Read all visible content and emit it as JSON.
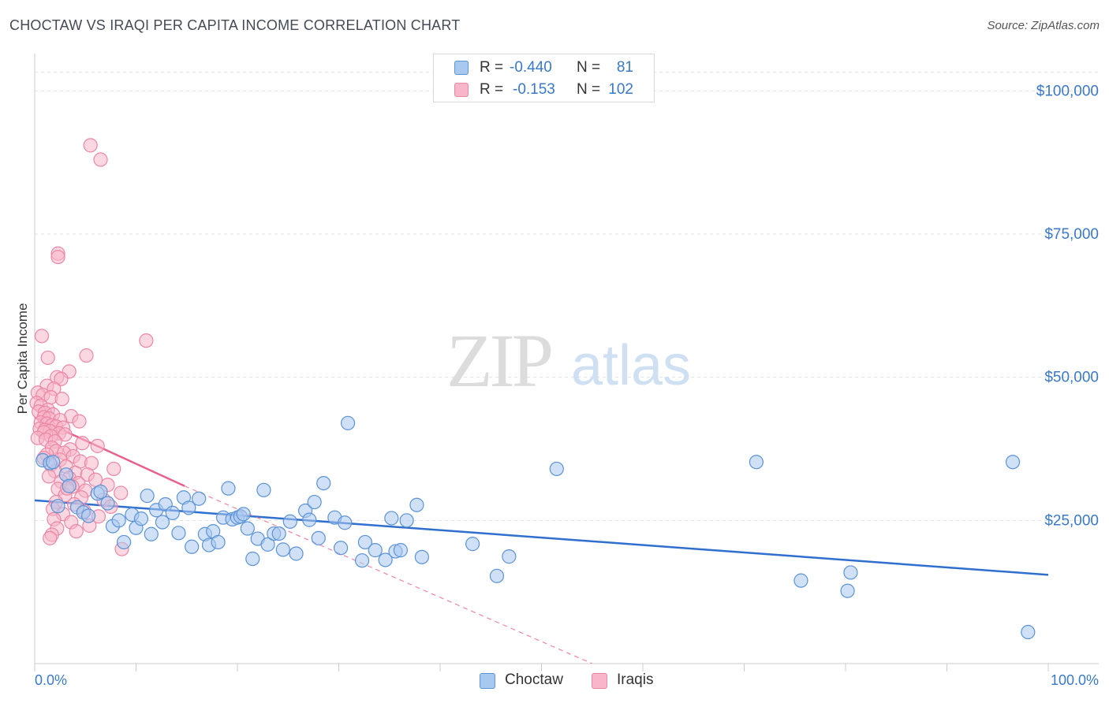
{
  "title": "CHOCTAW VS IRAQI PER CAPITA INCOME CORRELATION CHART",
  "source": "Source: ZipAtlas.com",
  "watermark": {
    "zip": "ZIP",
    "atlas": "atlas"
  },
  "legend": {
    "rows": [
      {
        "r_label": "R =",
        "r_value": "-0.440",
        "n_label": "N =",
        "n_value": "81"
      },
      {
        "r_label": "R =",
        "r_value": "-0.153",
        "n_label": "N =",
        "n_value": "102"
      }
    ]
  },
  "bottom_legend": {
    "series1": "Choctaw",
    "series2": "Iraqis"
  },
  "colors": {
    "choctaw_fill": "#a9c8f0",
    "choctaw_stroke": "#5b93d6",
    "choctaw_line": "#2f6fcf",
    "iraqi_fill": "#f7b6c9",
    "iraqi_stroke": "#ec86a5",
    "iraqi_line": "#e8608c",
    "axis_label": "#3a78c8"
  },
  "chart_data": {
    "type": "scatter",
    "title": "CHOCTAW VS IRAQI PER CAPITA INCOME CORRELATION CHART",
    "xlabel": "",
    "ylabel": "Per Capita Income",
    "x_tick_labels": {
      "left": "0.0%",
      "right": "100.0%"
    },
    "xlim": [
      0,
      100
    ],
    "ylim": [
      0,
      105000
    ],
    "y_ticks": [
      {
        "value": 25000,
        "label": "$25,000"
      },
      {
        "value": 50000,
        "label": "$50,000"
      },
      {
        "value": 75000,
        "label": "$75,000"
      },
      {
        "value": 100000,
        "label": "$100,000"
      }
    ],
    "series": [
      {
        "name": "Choctaw",
        "r": -0.44,
        "n": 81,
        "trend": {
          "x": [
            0,
            100
          ],
          "y": [
            28500,
            15500
          ]
        },
        "points": [
          [
            0.8,
            35500
          ],
          [
            1.5,
            35000
          ],
          [
            1.8,
            35200
          ],
          [
            2.3,
            27500
          ],
          [
            3.1,
            33000
          ],
          [
            3.4,
            31000
          ],
          [
            4.2,
            27300
          ],
          [
            4.8,
            26400
          ],
          [
            5.3,
            25800
          ],
          [
            6.2,
            29700
          ],
          [
            6.5,
            30000
          ],
          [
            7.2,
            28000
          ],
          [
            7.7,
            24000
          ],
          [
            8.3,
            25000
          ],
          [
            8.8,
            21200
          ],
          [
            9.6,
            26000
          ],
          [
            10.0,
            23700
          ],
          [
            10.5,
            25300
          ],
          [
            11.1,
            29300
          ],
          [
            11.5,
            22600
          ],
          [
            12.0,
            26800
          ],
          [
            12.6,
            24700
          ],
          [
            12.9,
            27800
          ],
          [
            13.6,
            26300
          ],
          [
            14.2,
            22800
          ],
          [
            14.7,
            29000
          ],
          [
            15.2,
            27200
          ],
          [
            15.5,
            20400
          ],
          [
            16.2,
            28800
          ],
          [
            16.8,
            22600
          ],
          [
            17.2,
            20700
          ],
          [
            17.6,
            23100
          ],
          [
            18.1,
            21200
          ],
          [
            18.6,
            25500
          ],
          [
            19.1,
            30600
          ],
          [
            19.5,
            25200
          ],
          [
            20.0,
            25500
          ],
          [
            20.3,
            25700
          ],
          [
            20.6,
            26100
          ],
          [
            21.0,
            23600
          ],
          [
            21.5,
            18300
          ],
          [
            22.0,
            21800
          ],
          [
            22.6,
            30300
          ],
          [
            23.0,
            20800
          ],
          [
            23.6,
            22700
          ],
          [
            24.1,
            22700
          ],
          [
            24.5,
            19900
          ],
          [
            25.2,
            24800
          ],
          [
            25.8,
            19200
          ],
          [
            26.7,
            26700
          ],
          [
            27.1,
            25100
          ],
          [
            27.6,
            28200
          ],
          [
            28.0,
            21900
          ],
          [
            28.5,
            31500
          ],
          [
            29.6,
            25500
          ],
          [
            30.2,
            20200
          ],
          [
            30.6,
            24600
          ],
          [
            30.9,
            42000
          ],
          [
            32.3,
            18000
          ],
          [
            32.6,
            21200
          ],
          [
            33.6,
            19800
          ],
          [
            34.6,
            18100
          ],
          [
            35.2,
            25400
          ],
          [
            35.6,
            19600
          ],
          [
            36.1,
            19800
          ],
          [
            36.7,
            25000
          ],
          [
            37.7,
            27700
          ],
          [
            38.2,
            18600
          ],
          [
            43.2,
            20900
          ],
          [
            45.6,
            15300
          ],
          [
            46.8,
            18700
          ],
          [
            51.5,
            34000
          ],
          [
            71.2,
            35200
          ],
          [
            75.6,
            14500
          ],
          [
            80.2,
            12700
          ],
          [
            80.5,
            15900
          ],
          [
            96.5,
            35200
          ],
          [
            98.0,
            5500
          ]
        ]
      },
      {
        "name": "Iraqis",
        "r": -0.153,
        "n": 102,
        "trend": {
          "x": [
            0,
            14.8
          ],
          "y": [
            43000,
            31000
          ]
        },
        "trend_dashed": {
          "x": [
            14.8,
            55
          ],
          "y": [
            31000,
            0
          ]
        },
        "points": [
          [
            5.5,
            90500
          ],
          [
            6.5,
            88000
          ],
          [
            2.3,
            71600
          ],
          [
            2.3,
            71000
          ],
          [
            0.7,
            57200
          ],
          [
            11.0,
            56400
          ],
          [
            5.1,
            53800
          ],
          [
            1.3,
            53400
          ],
          [
            3.4,
            51000
          ],
          [
            2.2,
            50000
          ],
          [
            2.6,
            49700
          ],
          [
            1.2,
            48500
          ],
          [
            1.9,
            48000
          ],
          [
            0.3,
            47300
          ],
          [
            0.8,
            46900
          ],
          [
            1.6,
            46500
          ],
          [
            2.7,
            46200
          ],
          [
            0.2,
            45500
          ],
          [
            0.6,
            45000
          ],
          [
            1.3,
            44300
          ],
          [
            0.4,
            44000
          ],
          [
            1.0,
            43800
          ],
          [
            1.8,
            43500
          ],
          [
            3.6,
            43200
          ],
          [
            0.9,
            43000
          ],
          [
            1.4,
            42800
          ],
          [
            2.5,
            42500
          ],
          [
            4.4,
            42300
          ],
          [
            0.6,
            42100
          ],
          [
            1.2,
            41900
          ],
          [
            1.7,
            41600
          ],
          [
            2.1,
            41400
          ],
          [
            2.8,
            41200
          ],
          [
            0.5,
            41000
          ],
          [
            1.0,
            40800
          ],
          [
            1.5,
            40600
          ],
          [
            0.9,
            40400
          ],
          [
            2.4,
            40200
          ],
          [
            3.0,
            40000
          ],
          [
            1.6,
            39700
          ],
          [
            0.3,
            39400
          ],
          [
            1.1,
            39100
          ],
          [
            2.0,
            38800
          ],
          [
            4.7,
            38500
          ],
          [
            6.2,
            38000
          ],
          [
            1.7,
            37700
          ],
          [
            3.5,
            37400
          ],
          [
            2.1,
            37100
          ],
          [
            2.9,
            36800
          ],
          [
            1.2,
            36500
          ],
          [
            3.8,
            36200
          ],
          [
            0.9,
            35900
          ],
          [
            2.5,
            35600
          ],
          [
            4.5,
            35300
          ],
          [
            5.6,
            35000
          ],
          [
            1.6,
            34700
          ],
          [
            3.1,
            34400
          ],
          [
            7.8,
            34000
          ],
          [
            2.0,
            33600
          ],
          [
            4.0,
            33300
          ],
          [
            5.2,
            33000
          ],
          [
            1.4,
            32700
          ],
          [
            3.4,
            32400
          ],
          [
            6.0,
            32100
          ],
          [
            2.6,
            31800
          ],
          [
            4.3,
            31500
          ],
          [
            7.2,
            31200
          ],
          [
            3.7,
            30900
          ],
          [
            2.3,
            30500
          ],
          [
            5.0,
            30200
          ],
          [
            8.5,
            29800
          ],
          [
            3.0,
            29400
          ],
          [
            4.6,
            29000
          ],
          [
            6.8,
            28600
          ],
          [
            2.1,
            28200
          ],
          [
            3.9,
            27800
          ],
          [
            7.5,
            27400
          ],
          [
            1.8,
            27000
          ],
          [
            4.9,
            26600
          ],
          [
            2.8,
            26100
          ],
          [
            6.3,
            25700
          ],
          [
            1.9,
            25200
          ],
          [
            3.6,
            24700
          ],
          [
            5.4,
            24100
          ],
          [
            2.2,
            23600
          ],
          [
            4.1,
            23100
          ],
          [
            1.7,
            22500
          ],
          [
            8.6,
            20000
          ],
          [
            1.5,
            21900
          ],
          [
            3.2,
            30600
          ]
        ]
      }
    ]
  }
}
